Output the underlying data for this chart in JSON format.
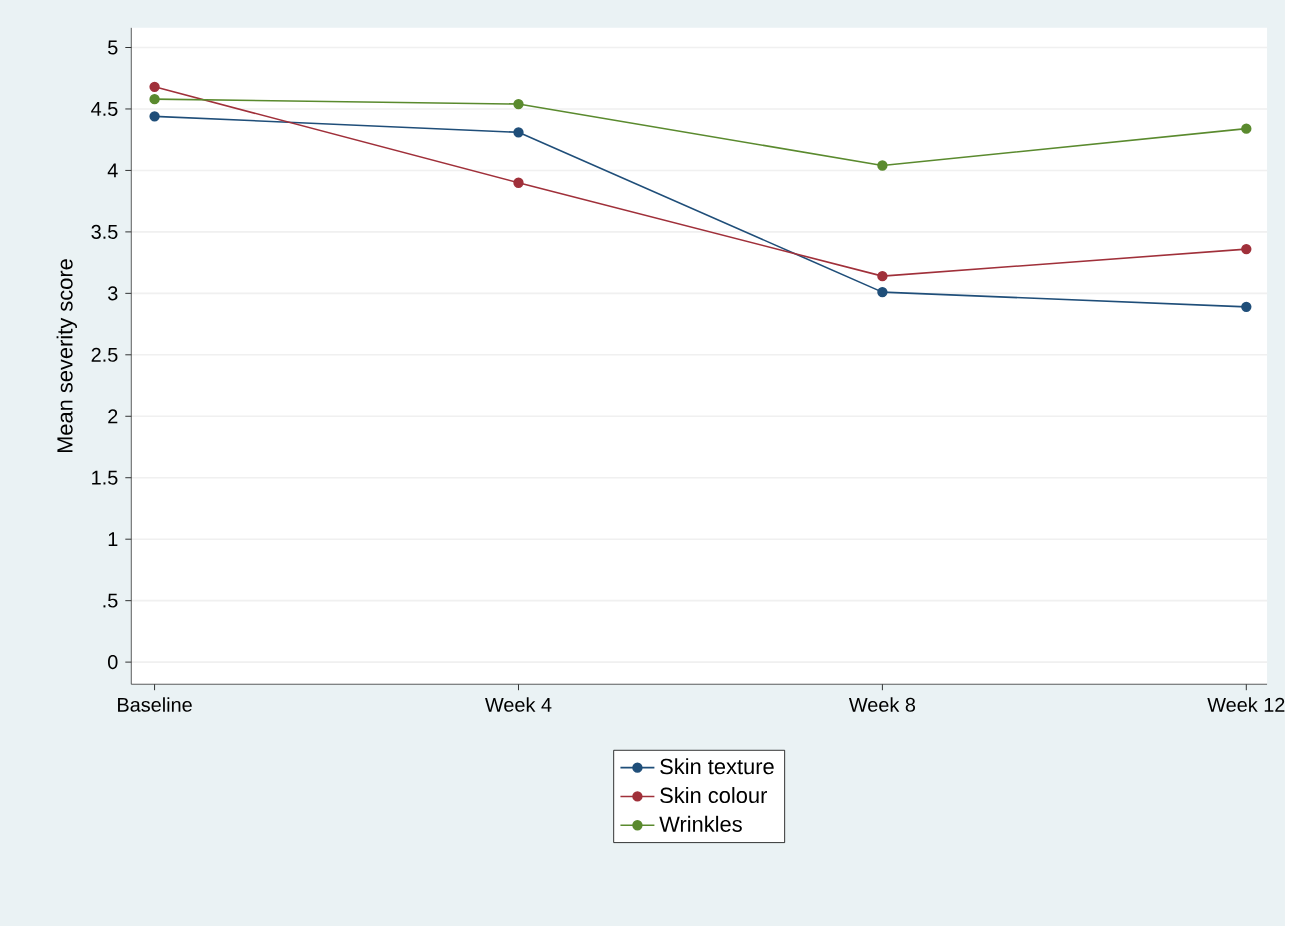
{
  "chart_data": {
    "type": "line",
    "ylabel": "Mean severity score",
    "categories": [
      "Baseline",
      "Week 4",
      "Week 8",
      "Week 12"
    ],
    "series": [
      {
        "name": "Skin texture",
        "color": "#1f4e79",
        "values": [
          4.44,
          4.31,
          3.01,
          2.89
        ]
      },
      {
        "name": "Skin colour",
        "color": "#a0303a",
        "values": [
          4.68,
          3.9,
          3.14,
          3.36
        ]
      },
      {
        "name": "Wrinkles",
        "color": "#5a8a2e",
        "values": [
          4.58,
          4.54,
          4.04,
          4.34
        ]
      }
    ],
    "ylim": [
      -0.18,
      5.16
    ],
    "yticks": [
      0,
      {
        "value": 0.5,
        "label": ".5"
      },
      1,
      1.5,
      2,
      2.5,
      3,
      3.5,
      4,
      4.5,
      5
    ],
    "grid": "y",
    "legend": "bottom",
    "marker": "circle",
    "line_style": "solid"
  }
}
